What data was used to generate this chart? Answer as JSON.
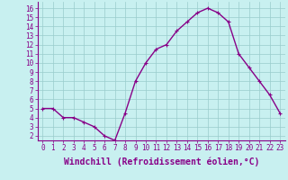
{
  "x": [
    0,
    1,
    2,
    3,
    4,
    5,
    6,
    7,
    8,
    9,
    10,
    11,
    12,
    13,
    14,
    15,
    16,
    17,
    18,
    19,
    20,
    21,
    22,
    23
  ],
  "y": [
    5,
    5,
    4,
    4,
    3.5,
    3,
    2,
    1.5,
    4.5,
    8,
    10,
    11.5,
    12,
    13.5,
    14.5,
    15.5,
    16,
    15.5,
    14.5,
    11,
    9.5,
    8,
    6.5,
    4.5
  ],
  "line_color": "#880088",
  "marker": "+",
  "marker_size": 3,
  "xlabel": "Windchill (Refroidissement éolien,°C)",
  "xlabel_fontsize": 7,
  "bg_color": "#c8f0f0",
  "grid_color": "#99cccc",
  "xlim": [
    -0.5,
    23.5
  ],
  "ylim": [
    1.5,
    16.7
  ],
  "yticks": [
    2,
    3,
    4,
    5,
    6,
    7,
    8,
    9,
    10,
    11,
    12,
    13,
    14,
    15,
    16
  ],
  "xticks": [
    0,
    1,
    2,
    3,
    4,
    5,
    6,
    7,
    8,
    9,
    10,
    11,
    12,
    13,
    14,
    15,
    16,
    17,
    18,
    19,
    20,
    21,
    22,
    23
  ],
  "tick_fontsize": 5.5,
  "line_width": 1.0
}
